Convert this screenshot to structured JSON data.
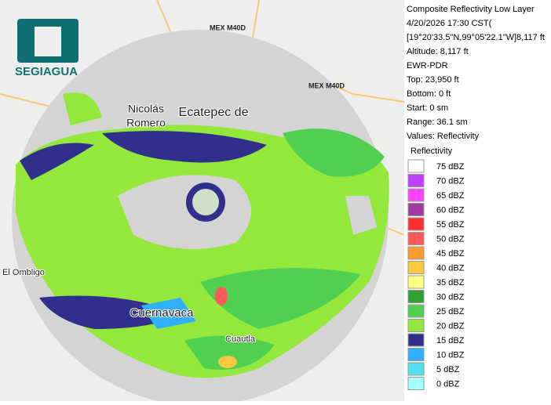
{
  "logo": {
    "text": "SEGIAGUA"
  },
  "map_labels": {
    "roads": [
      "MEX M40D",
      "MEX M40D"
    ],
    "places": [
      "Nicolás",
      "Romero",
      "Ecatepec de",
      "Cuernavaca",
      "Cuautla",
      "El Ombligo"
    ]
  },
  "info": {
    "lines": [
      "Composite Reflectivity Low Layer",
      "4/20/2026 17:30 CST(",
      "[19°20'33.5\"N,99°05'22.1\"W]8,117 ft",
      "Altitude: 8,117 ft",
      "EWR-PDR",
      "Top: 23,950 ft",
      "Bottom: 0 ft",
      "Start: 0 sm",
      "Range: 36.1 sm",
      "Values: Reflectivity"
    ]
  },
  "legend": {
    "title": "Reflectivity",
    "items": [
      {
        "label": "75 dBZ",
        "color": "#ffffff"
      },
      {
        "label": "70 dBZ",
        "color": "#c040ff"
      },
      {
        "label": "65 dBZ",
        "color": "#ff40ff"
      },
      {
        "label": "60 dBZ",
        "color": "#a03ca0"
      },
      {
        "label": "55 dBZ",
        "color": "#ff3030"
      },
      {
        "label": "50 dBZ",
        "color": "#ff5a5a"
      },
      {
        "label": "45 dBZ",
        "color": "#ff9a30"
      },
      {
        "label": "40 dBZ",
        "color": "#ffc840"
      },
      {
        "label": "35 dBZ",
        "color": "#ffff80"
      },
      {
        "label": "30 dBZ",
        "color": "#30a030"
      },
      {
        "label": "25 dBZ",
        "color": "#50d050"
      },
      {
        "label": "20 dBZ",
        "color": "#94e83c"
      },
      {
        "label": "15 dBZ",
        "color": "#30308c"
      },
      {
        "label": "10 dBZ",
        "color": "#30b0ff"
      },
      {
        "label": "5 dBZ",
        "color": "#50e0f0"
      },
      {
        "label": "0 dBZ",
        "color": "#a8ffff"
      }
    ]
  }
}
